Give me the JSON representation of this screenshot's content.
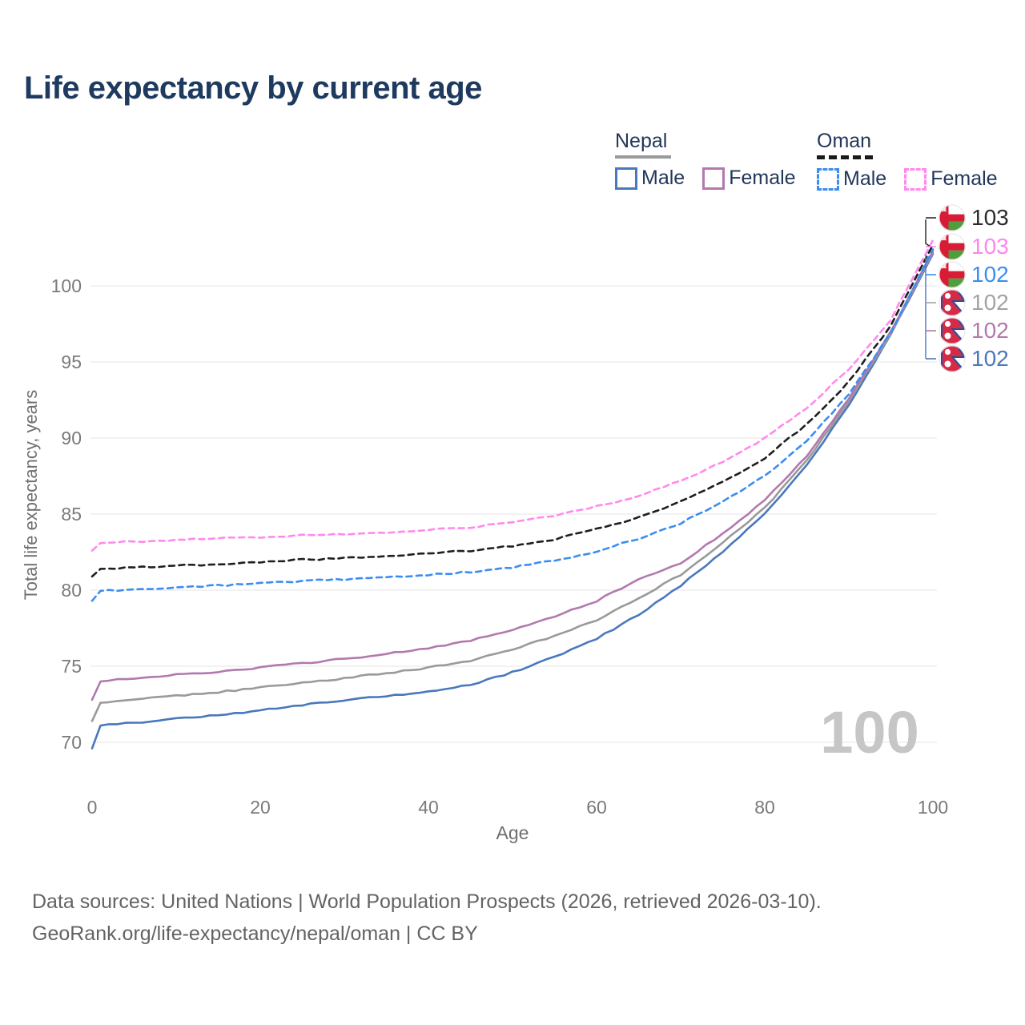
{
  "title": "Life expectancy by current age",
  "legend": {
    "groups": [
      {
        "country": "Nepal",
        "line_style": "solid",
        "line_color": "#9a9a9a",
        "items": [
          {
            "label": "Male",
            "color": "#4a78bc"
          },
          {
            "label": "Female",
            "color": "#b279ae"
          }
        ]
      },
      {
        "country": "Oman",
        "line_style": "dashed",
        "line_color": "#1a1a1a",
        "items": [
          {
            "label": "Male",
            "color": "#3c8df2"
          },
          {
            "label": "Female",
            "color": "#ff8aec"
          }
        ]
      }
    ]
  },
  "watermark": "100",
  "end_labels": [
    {
      "flag": "oman",
      "value": "103",
      "color": "#2b2b2b"
    },
    {
      "flag": "oman",
      "value": "103",
      "color": "#ff85ea"
    },
    {
      "flag": "oman",
      "value": "102",
      "color": "#3c8df2"
    },
    {
      "flag": "nepal",
      "value": "102",
      "color": "#a3a3a3"
    },
    {
      "flag": "nepal",
      "value": "102",
      "color": "#b279ae"
    },
    {
      "flag": "nepal",
      "value": "102",
      "color": "#4a78bc"
    }
  ],
  "footer": {
    "line1": "Data sources: United Nations | World Population Prospects (2026, retrieved 2026-03-10).",
    "line2": "GeoRank.org/life-expectancy/nepal/oman | CC BY"
  },
  "chart_data": {
    "type": "line",
    "title": "Life expectancy by current age",
    "xlabel": "Age",
    "ylabel": "Total life expectancy, years",
    "xlim": [
      0,
      100
    ],
    "ylim": [
      69,
      104
    ],
    "xticks": [
      0,
      20,
      40,
      60,
      80,
      100
    ],
    "yticks": [
      70,
      75,
      80,
      85,
      90,
      95,
      100
    ],
    "grid": "horizontal",
    "legend_position": "top-right",
    "ages": [
      0,
      1,
      5,
      10,
      15,
      20,
      25,
      30,
      35,
      40,
      45,
      50,
      55,
      60,
      65,
      70,
      75,
      80,
      85,
      90,
      95,
      100
    ],
    "series": [
      {
        "name": "Nepal Male",
        "key": "nepal-male",
        "style": "solid",
        "color": "#4a78bc",
        "end_label": 102,
        "values": [
          69.6,
          71.1,
          71.3,
          71.55,
          71.8,
          72.1,
          72.45,
          72.75,
          73.05,
          73.35,
          73.8,
          74.6,
          75.6,
          76.8,
          78.4,
          80.3,
          82.5,
          85.0,
          88.2,
          92.2,
          96.8,
          102.1
        ]
      },
      {
        "name": "Nepal Total",
        "key": "nepal-total",
        "style": "solid",
        "color": "#9a9a9a",
        "end_label": 102,
        "values": [
          71.4,
          72.6,
          72.8,
          73.05,
          73.3,
          73.6,
          73.9,
          74.2,
          74.55,
          74.9,
          75.35,
          76.1,
          77.0,
          78.0,
          79.5,
          81.0,
          83.1,
          85.4,
          88.5,
          92.4,
          96.9,
          102.2
        ]
      },
      {
        "name": "Nepal Female",
        "key": "nepal-female",
        "style": "solid",
        "color": "#b279ae",
        "end_label": 102,
        "values": [
          72.8,
          74.0,
          74.2,
          74.45,
          74.65,
          74.9,
          75.2,
          75.5,
          75.8,
          76.2,
          76.7,
          77.4,
          78.3,
          79.3,
          80.7,
          81.8,
          83.7,
          85.9,
          88.8,
          92.6,
          97.0,
          102.3
        ]
      },
      {
        "name": "Oman Male",
        "key": "oman-male",
        "style": "dashed",
        "color": "#3c8df2",
        "end_label": 102,
        "values": [
          79.3,
          79.95,
          80.05,
          80.15,
          80.3,
          80.45,
          80.6,
          80.7,
          80.85,
          81.0,
          81.2,
          81.5,
          81.95,
          82.55,
          83.4,
          84.4,
          85.8,
          87.5,
          89.8,
          92.9,
          96.9,
          102.4
        ]
      },
      {
        "name": "Oman Total",
        "key": "oman-total",
        "style": "dashed",
        "color": "#1f1f1f",
        "end_label": 103,
        "values": [
          80.9,
          81.4,
          81.5,
          81.6,
          81.7,
          81.85,
          82.0,
          82.1,
          82.25,
          82.4,
          82.6,
          82.9,
          83.35,
          84.0,
          84.8,
          85.8,
          87.1,
          88.7,
          90.9,
          93.7,
          97.4,
          102.7
        ]
      },
      {
        "name": "Oman Female",
        "key": "oman-female",
        "style": "dashed",
        "color": "#ff8aec",
        "end_label": 103,
        "values": [
          82.6,
          83.1,
          83.2,
          83.3,
          83.4,
          83.5,
          83.6,
          83.7,
          83.8,
          83.95,
          84.15,
          84.45,
          84.9,
          85.5,
          86.2,
          87.2,
          88.4,
          90.0,
          92.0,
          94.5,
          97.8,
          103.0
        ]
      }
    ]
  }
}
